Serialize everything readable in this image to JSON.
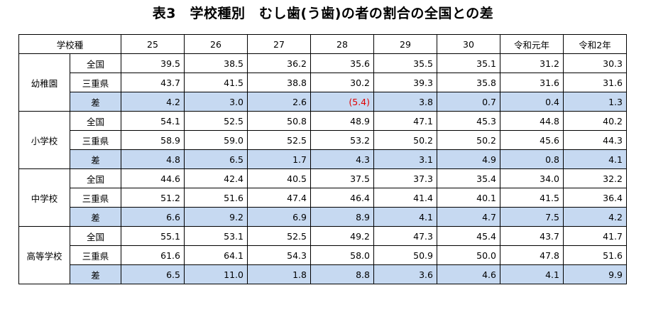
{
  "title": "表3　学校種別　むし歯(う歯)の者の割合の全国との差",
  "header": {
    "school_type": "学校種",
    "years": [
      "25",
      "26",
      "27",
      "28",
      "29",
      "30",
      "令和元年",
      "令和2年"
    ]
  },
  "groups": [
    {
      "name": "幼稚園",
      "rows": [
        {
          "label": "全国",
          "values": [
            "39.5",
            "38.5",
            "36.2",
            "35.6",
            "35.5",
            "35.1",
            "31.2",
            "30.3"
          ]
        },
        {
          "label": "三重県",
          "values": [
            "43.7",
            "41.5",
            "38.8",
            "30.2",
            "39.3",
            "35.8",
            "31.6",
            "31.6"
          ]
        },
        {
          "label": "差",
          "values": [
            "4.2",
            "3.0",
            "2.6",
            "(5.4)",
            "3.8",
            "0.7",
            "0.4",
            "1.3"
          ]
        }
      ]
    },
    {
      "name": "小学校",
      "rows": [
        {
          "label": "全国",
          "values": [
            "54.1",
            "52.5",
            "50.8",
            "48.9",
            "47.1",
            "45.3",
            "44.8",
            "40.2"
          ]
        },
        {
          "label": "三重県",
          "values": [
            "58.9",
            "59.0",
            "52.5",
            "53.2",
            "50.2",
            "50.2",
            "45.6",
            "44.3"
          ]
        },
        {
          "label": "差",
          "values": [
            "4.8",
            "6.5",
            "1.7",
            "4.3",
            "3.1",
            "4.9",
            "0.8",
            "4.1"
          ]
        }
      ]
    },
    {
      "name": "中学校",
      "rows": [
        {
          "label": "全国",
          "values": [
            "44.6",
            "42.4",
            "40.5",
            "37.5",
            "37.3",
            "35.4",
            "34.0",
            "32.2"
          ]
        },
        {
          "label": "三重県",
          "values": [
            "51.2",
            "51.6",
            "47.4",
            "46.4",
            "41.4",
            "40.1",
            "41.5",
            "36.4"
          ]
        },
        {
          "label": "差",
          "values": [
            "6.6",
            "9.2",
            "6.9",
            "8.9",
            "4.1",
            "4.7",
            "7.5",
            "4.2"
          ]
        }
      ]
    },
    {
      "name": "高等学校",
      "rows": [
        {
          "label": "全国",
          "values": [
            "55.1",
            "53.1",
            "52.5",
            "49.2",
            "47.3",
            "45.4",
            "43.7",
            "41.7"
          ]
        },
        {
          "label": "三重県",
          "values": [
            "61.6",
            "64.1",
            "54.3",
            "58.0",
            "50.9",
            "50.0",
            "47.8",
            "51.6"
          ]
        },
        {
          "label": "差",
          "values": [
            "6.5",
            "11.0",
            "1.8",
            "8.8",
            "3.6",
            "4.6",
            "4.1",
            "9.9"
          ]
        }
      ]
    }
  ],
  "colors": {
    "diff_row_fill": "#c6d9f1",
    "negative_text": "#e00000",
    "border": "#000000"
  }
}
